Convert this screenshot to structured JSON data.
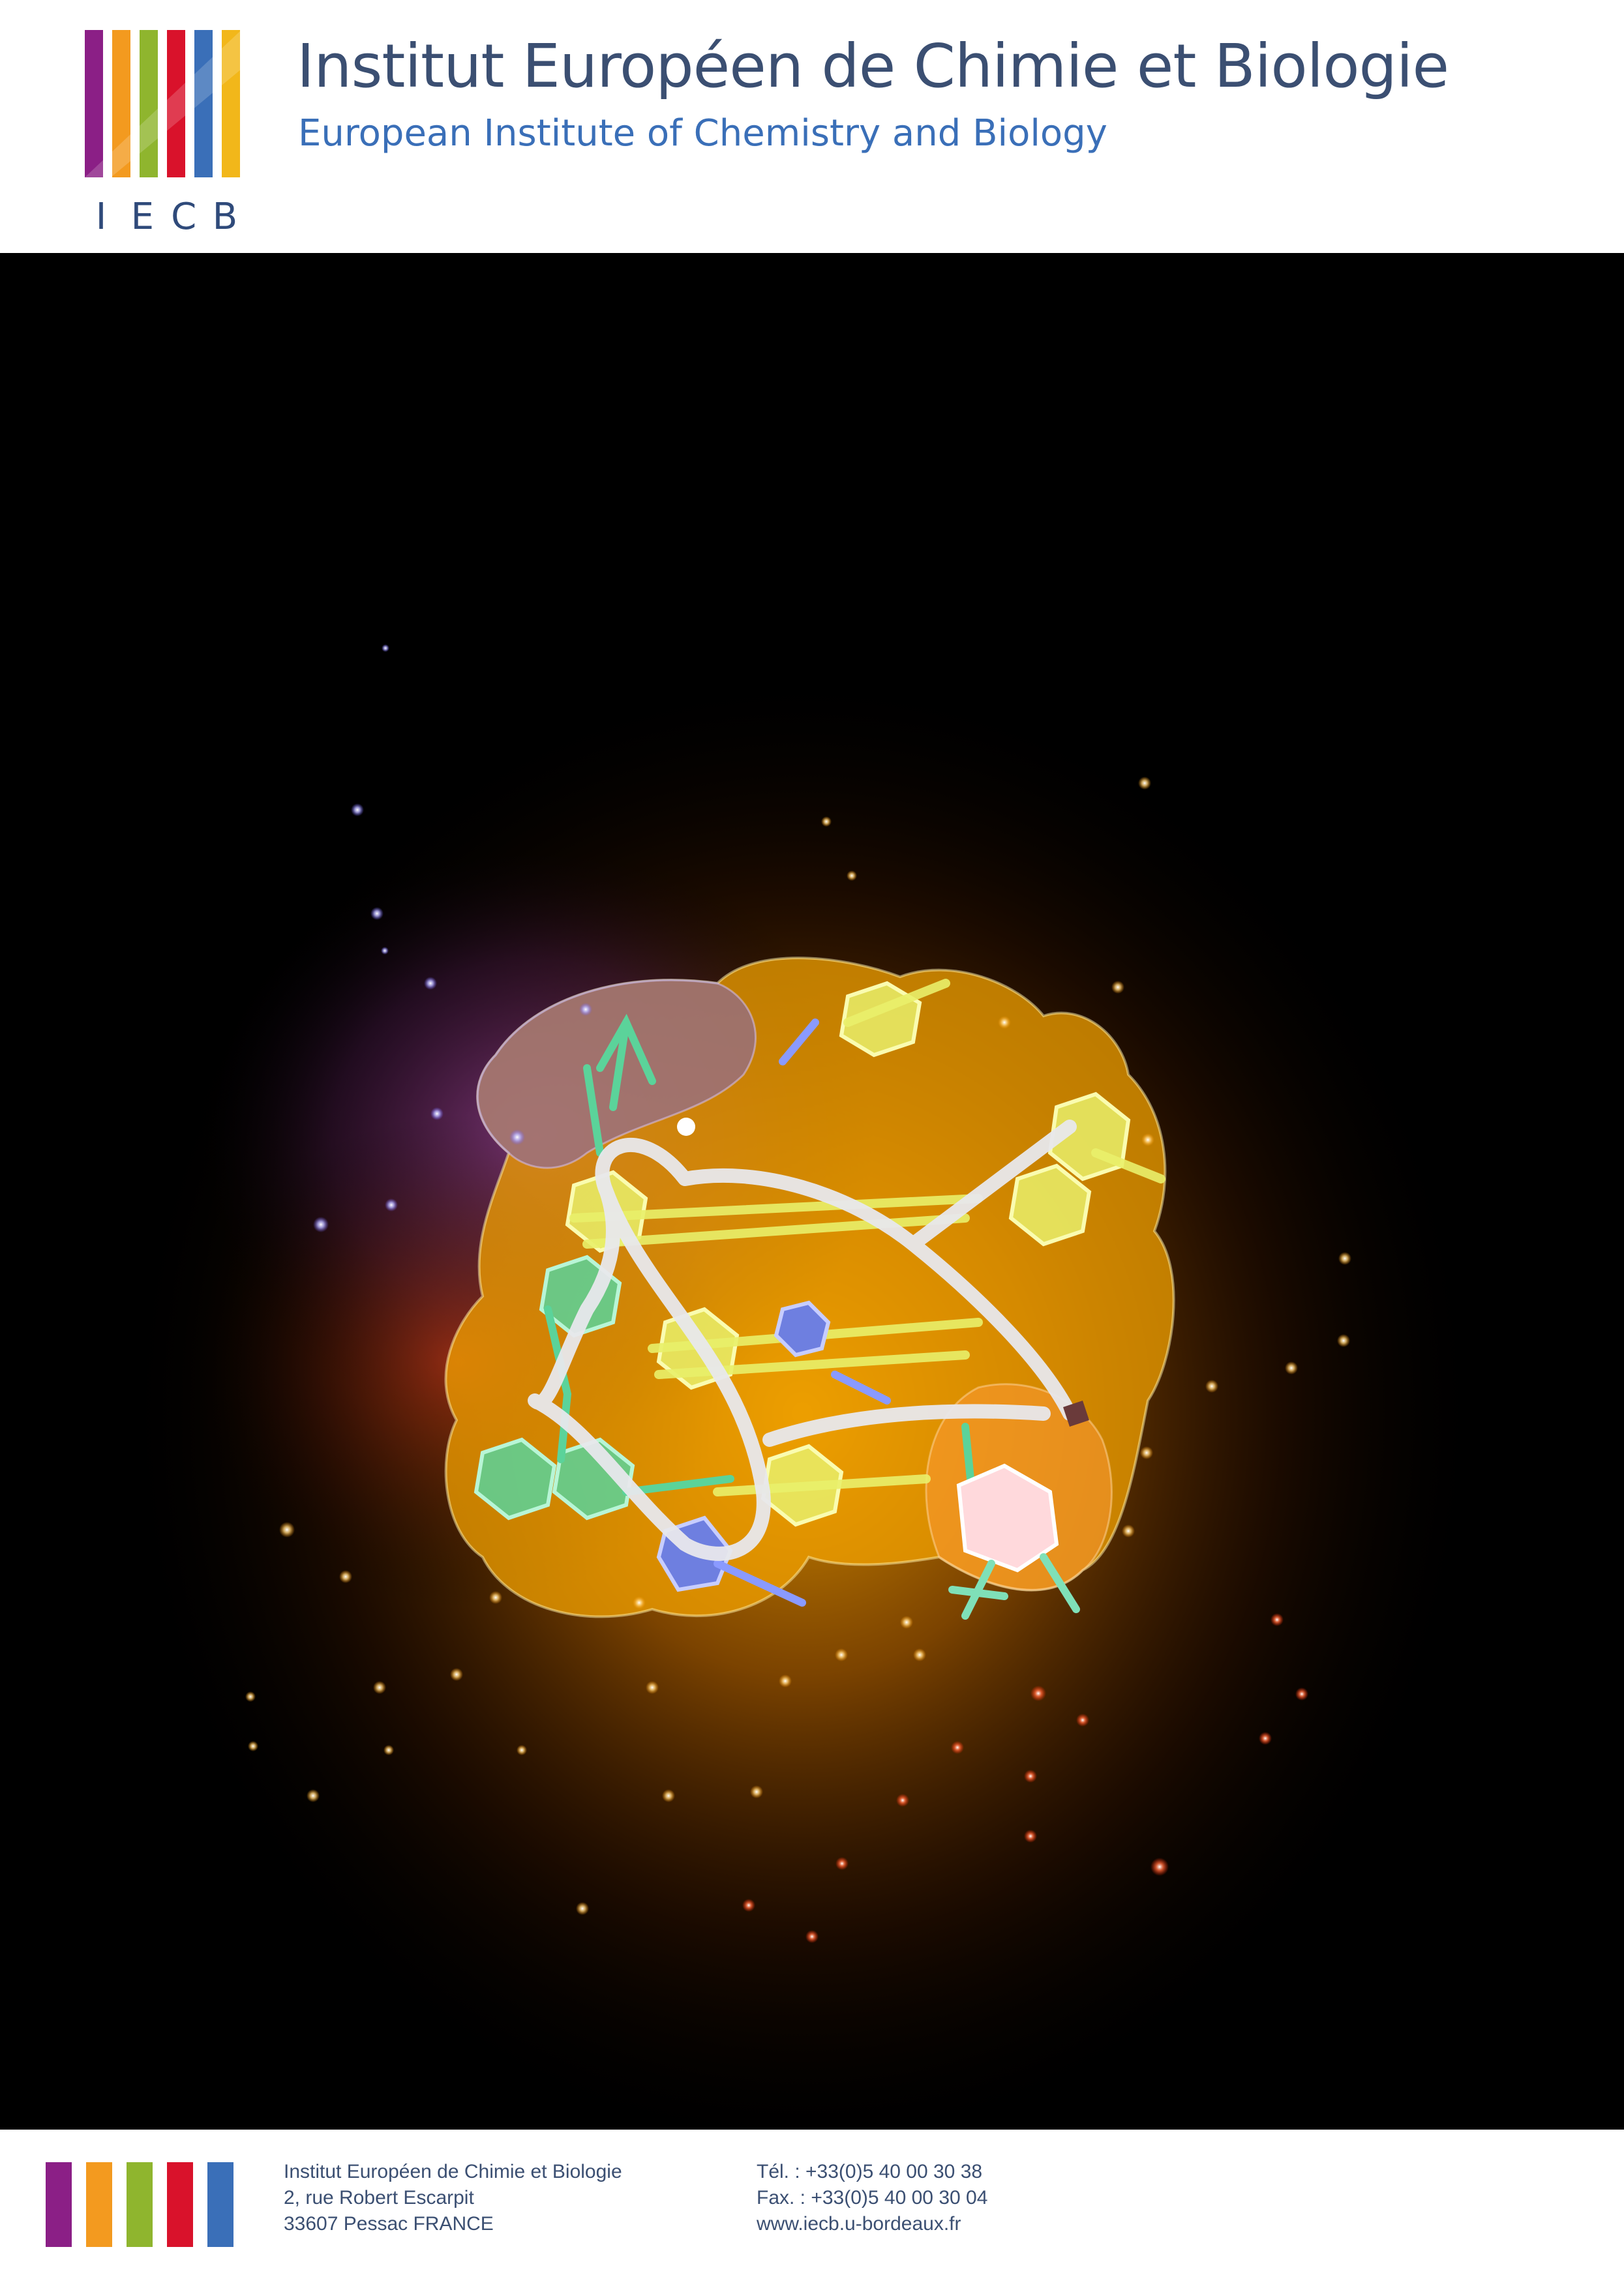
{
  "header": {
    "logo_letters": [
      "I",
      "E",
      "C",
      "B"
    ],
    "title_fr": "Institut Européen de Chimie et Biologie",
    "title_en": "European Institute of Chemistry and Biology"
  },
  "brand_colors": [
    "#8b1f86",
    "#f39a1f",
    "#8fb52e",
    "#d9122b",
    "#3a6fb8",
    "#f2b71a"
  ],
  "footer": {
    "address": [
      "Institut Européen de Chimie et Biologie",
      "2, rue Robert Escarpit",
      "33607 Pessac FRANCE"
    ],
    "contact": [
      "Tél. : +33(0)5 40 00 30 38",
      "Fax. : +33(0)5 40 00 30 04",
      "www.iecb.u-bordeaux.fr"
    ]
  }
}
